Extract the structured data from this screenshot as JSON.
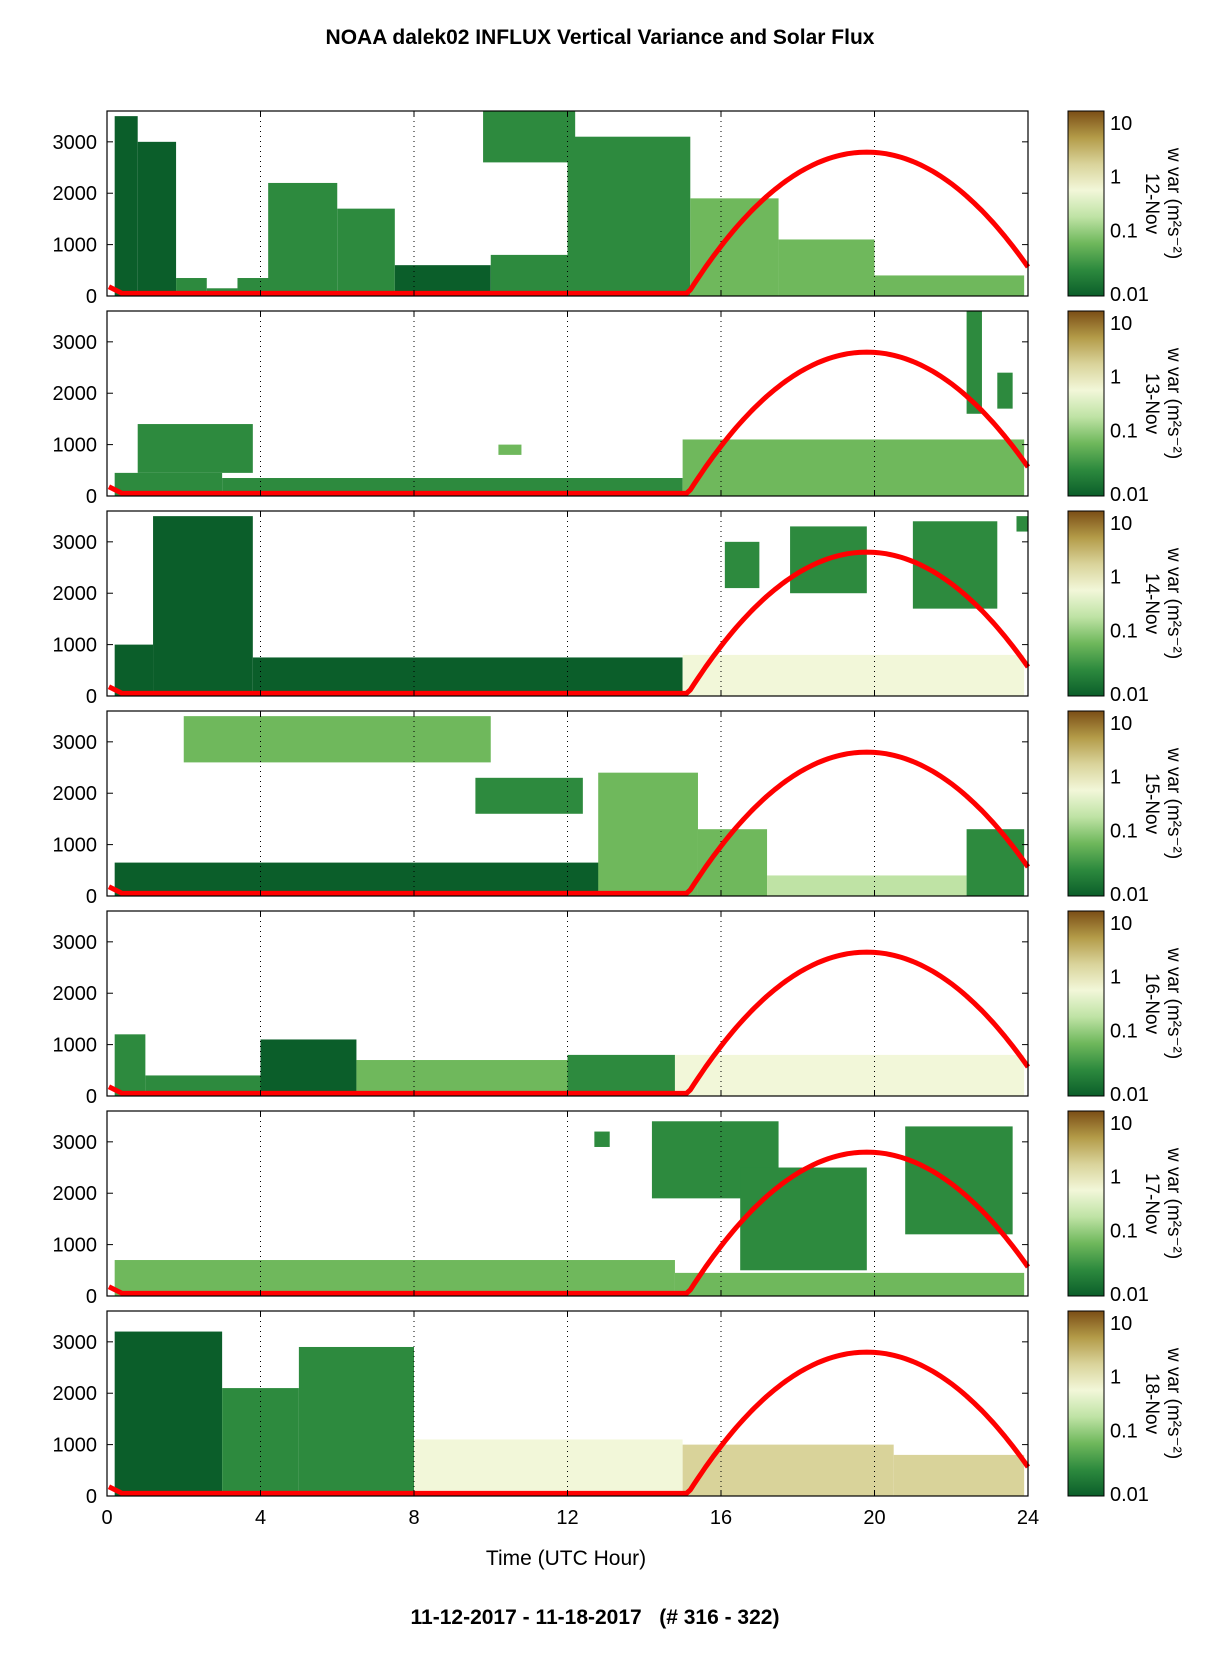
{
  "figure": {
    "title": "NOAA dalek02 INFLUX Vertical Variance and Solar Flux",
    "footer": "11-12-2017 - 11-18-2017   (# 316 - 322)",
    "xlabel": "Time (UTC Hour)"
  },
  "colorbar": {
    "label": "w var (m²s⁻²)",
    "tick_labels": [
      "10",
      "1",
      "0.1",
      "0.01"
    ],
    "range": [
      0.01,
      10
    ],
    "scale": "log",
    "colormap": [
      "#0b5e2a",
      "#2d8a3e",
      "#6fb85c",
      "#bfe3a5",
      "#f2f7d9",
      "#d9d39a",
      "#b39b48",
      "#7b4e16"
    ]
  },
  "chart_data": {
    "type": "heatmap",
    "x": {
      "label": "Time (UTC Hour)",
      "range": [
        0,
        24
      ],
      "ticks": [
        0,
        4,
        8,
        12,
        16,
        20,
        24
      ],
      "grid": "dotted-vertical"
    },
    "y": {
      "range": [
        0,
        3600
      ],
      "ticks": [
        0,
        1000,
        2000,
        3000
      ]
    },
    "overlay": {
      "name": "solar flux",
      "color": "#ff0000",
      "rise_hour": 15.1,
      "peak_hour": 19.8,
      "set_hour": 24.5,
      "peak_height": 2800,
      "night_height": 50
    },
    "panels": [
      {
        "day": "12-Nov",
        "regions": [
          {
            "x": [
              0.2,
              0.8
            ],
            "y": [
              0,
              3500
            ],
            "level": 0.01
          },
          {
            "x": [
              0.8,
              1.8
            ],
            "y": [
              0,
              3000
            ],
            "level": 0.015
          },
          {
            "x": [
              1.8,
              2.6
            ],
            "y": [
              0,
              350
            ],
            "level": 0.02
          },
          {
            "x": [
              2.6,
              3.4
            ],
            "y": [
              0,
              150
            ],
            "level": 0.02
          },
          {
            "x": [
              3.4,
              4.5
            ],
            "y": [
              0,
              350
            ],
            "level": 0.02
          },
          {
            "x": [
              4.2,
              6.0
            ],
            "y": [
              0,
              2200
            ],
            "level": 0.03
          },
          {
            "x": [
              6.0,
              7.5
            ],
            "y": [
              0,
              1700
            ],
            "level": 0.02
          },
          {
            "x": [
              7.5,
              10.0
            ],
            "y": [
              0,
              600
            ],
            "level": 0.015
          },
          {
            "x": [
              10.0,
              12.0
            ],
            "y": [
              0,
              800
            ],
            "level": 0.02
          },
          {
            "x": [
              9.8,
              12.2
            ],
            "y": [
              2600,
              3600
            ],
            "level": 0.03
          },
          {
            "x": [
              12.0,
              15.2
            ],
            "y": [
              0,
              3100
            ],
            "level": 0.025
          },
          {
            "x": [
              15.2,
              17.5
            ],
            "y": [
              0,
              1900
            ],
            "level": 0.08
          },
          {
            "x": [
              17.5,
              20.0
            ],
            "y": [
              0,
              1100
            ],
            "level": 0.06
          },
          {
            "x": [
              20.0,
              23.9
            ],
            "y": [
              0,
              400
            ],
            "level": 0.05
          }
        ]
      },
      {
        "day": "13-Nov",
        "regions": [
          {
            "x": [
              0.2,
              3.0
            ],
            "y": [
              0,
              450
            ],
            "level": 0.03
          },
          {
            "x": [
              0.8,
              3.8
            ],
            "y": [
              450,
              1400
            ],
            "level": 0.02
          },
          {
            "x": [
              3.0,
              15.0
            ],
            "y": [
              0,
              350
            ],
            "level": 0.04
          },
          {
            "x": [
              10.2,
              10.8
            ],
            "y": [
              800,
              1000
            ],
            "level": 0.05
          },
          {
            "x": [
              15.0,
              23.9
            ],
            "y": [
              0,
              1100
            ],
            "level": 0.06
          },
          {
            "x": [
              22.4,
              22.8
            ],
            "y": [
              1600,
              3600
            ],
            "level": 0.02
          },
          {
            "x": [
              23.2,
              23.6
            ],
            "y": [
              1700,
              2400
            ],
            "level": 0.02
          }
        ]
      },
      {
        "day": "14-Nov",
        "regions": [
          {
            "x": [
              0.2,
              1.2
            ],
            "y": [
              0,
              1000
            ],
            "level": 0.015
          },
          {
            "x": [
              1.2,
              3.8
            ],
            "y": [
              0,
              3500
            ],
            "level": 0.015
          },
          {
            "x": [
              3.8,
              15.0
            ],
            "y": [
              0,
              750
            ],
            "level": 0.01
          },
          {
            "x": [
              15.0,
              23.9
            ],
            "y": [
              0,
              800
            ],
            "level": 0.5
          },
          {
            "x": [
              16.1,
              17.0
            ],
            "y": [
              2100,
              3000
            ],
            "level": 0.02
          },
          {
            "x": [
              17.8,
              19.8
            ],
            "y": [
              2000,
              3300
            ],
            "level": 0.03
          },
          {
            "x": [
              21.0,
              23.2
            ],
            "y": [
              1700,
              3400
            ],
            "level": 0.025
          },
          {
            "x": [
              23.7,
              24.0
            ],
            "y": [
              3200,
              3500
            ],
            "level": 0.03
          }
        ]
      },
      {
        "day": "15-Nov",
        "regions": [
          {
            "x": [
              0.2,
              15.0
            ],
            "y": [
              0,
              650
            ],
            "level": 0.012
          },
          {
            "x": [
              2.0,
              10.0
            ],
            "y": [
              2600,
              3500
            ],
            "level": 0.05
          },
          {
            "x": [
              9.6,
              12.4
            ],
            "y": [
              1600,
              2300
            ],
            "level": 0.03
          },
          {
            "x": [
              12.8,
              15.4
            ],
            "y": [
              0,
              2400
            ],
            "level": 0.06
          },
          {
            "x": [
              15.4,
              17.2
            ],
            "y": [
              0,
              1300
            ],
            "level": 0.1
          },
          {
            "x": [
              17.2,
              22.4
            ],
            "y": [
              0,
              400
            ],
            "level": 0.3
          },
          {
            "x": [
              22.4,
              23.9
            ],
            "y": [
              0,
              1300
            ],
            "level": 0.04
          }
        ]
      },
      {
        "day": "16-Nov",
        "regions": [
          {
            "x": [
              0.2,
              1.0
            ],
            "y": [
              0,
              1200
            ],
            "level": 0.02
          },
          {
            "x": [
              1.0,
              4.0
            ],
            "y": [
              0,
              400
            ],
            "level": 0.03
          },
          {
            "x": [
              4.0,
              6.5
            ],
            "y": [
              0,
              1100
            ],
            "level": 0.015
          },
          {
            "x": [
              6.5,
              12.0
            ],
            "y": [
              0,
              700
            ],
            "level": 0.1
          },
          {
            "x": [
              12.0,
              14.8
            ],
            "y": [
              0,
              800
            ],
            "level": 0.03
          },
          {
            "x": [
              14.8,
              23.9
            ],
            "y": [
              0,
              800
            ],
            "level": 0.5
          }
        ]
      },
      {
        "day": "17-Nov",
        "regions": [
          {
            "x": [
              0.2,
              14.8
            ],
            "y": [
              0,
              700
            ],
            "level": 0.1
          },
          {
            "x": [
              14.8,
              23.9
            ],
            "y": [
              0,
              450
            ],
            "level": 0.1
          },
          {
            "x": [
              14.2,
              17.5
            ],
            "y": [
              1900,
              3400
            ],
            "level": 0.02
          },
          {
            "x": [
              16.5,
              19.8
            ],
            "y": [
              500,
              2500
            ],
            "level": 0.03
          },
          {
            "x": [
              20.8,
              23.6
            ],
            "y": [
              1200,
              3300
            ],
            "level": 0.03
          },
          {
            "x": [
              12.7,
              13.1
            ],
            "y": [
              2900,
              3200
            ],
            "level": 0.02
          }
        ]
      },
      {
        "day": "18-Nov",
        "regions": [
          {
            "x": [
              0.2,
              3.0
            ],
            "y": [
              0,
              3200
            ],
            "level": 0.015
          },
          {
            "x": [
              3.0,
              5.0
            ],
            "y": [
              0,
              2100
            ],
            "level": 0.02
          },
          {
            "x": [
              5.0,
              8.0
            ],
            "y": [
              0,
              2900
            ],
            "level": 0.03
          },
          {
            "x": [
              8.0,
              15.0
            ],
            "y": [
              0,
              1100
            ],
            "level": 0.5
          },
          {
            "x": [
              15.0,
              20.5
            ],
            "y": [
              0,
              1000
            ],
            "level": 2.0
          },
          {
            "x": [
              20.5,
              23.9
            ],
            "y": [
              0,
              800
            ],
            "level": 1.0
          }
        ]
      }
    ]
  }
}
